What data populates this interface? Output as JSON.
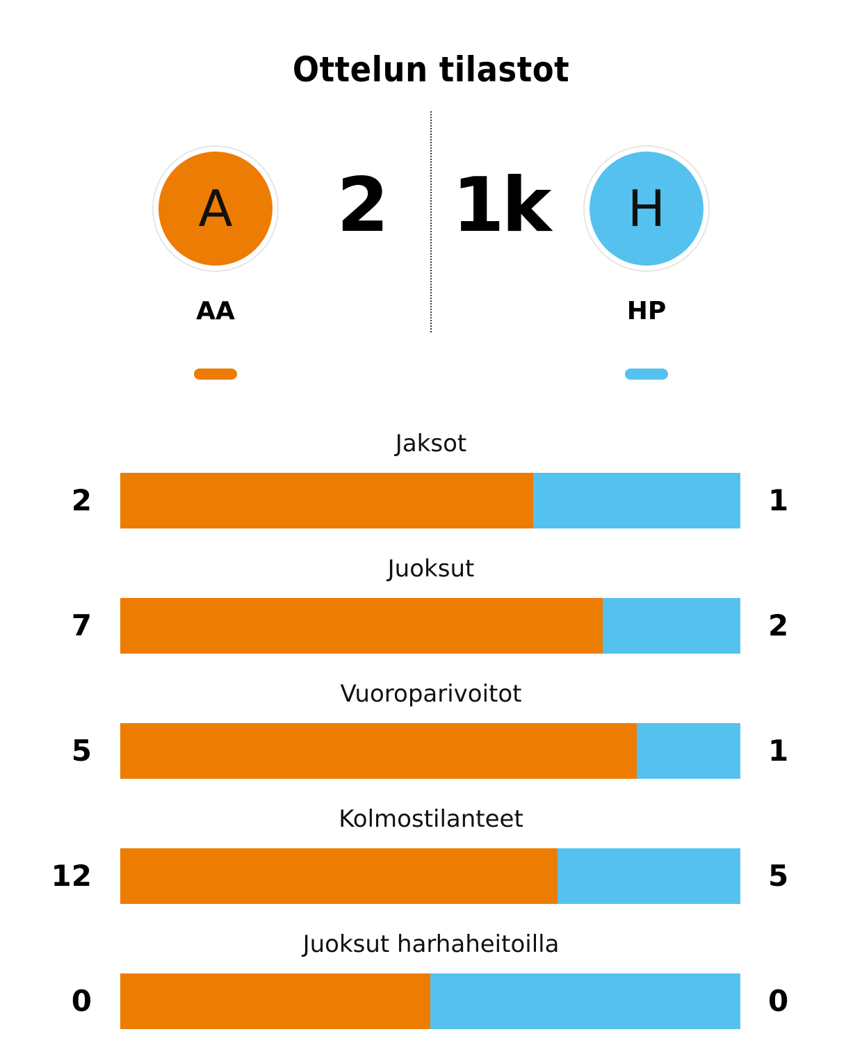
{
  "title": "Ottelun tilastot",
  "colors": {
    "home": "#ED7C02",
    "away": "#55C1EF"
  },
  "home": {
    "initial": "A",
    "name": "AA",
    "score": "2"
  },
  "away": {
    "initial": "H",
    "name": "HP",
    "score": "1k"
  },
  "stats": [
    {
      "label": "Jaksot",
      "home": "2",
      "away": "1",
      "home_share": 0.666
    },
    {
      "label": "Juoksut",
      "home": "7",
      "away": "2",
      "home_share": 0.778
    },
    {
      "label": "Vuoroparivoitot",
      "home": "5",
      "away": "1",
      "home_share": 0.833
    },
    {
      "label": "Kolmostilanteet",
      "home": "12",
      "away": "5",
      "home_share": 0.705
    },
    {
      "label": "Juoksut harhaheitoilla",
      "home": "0",
      "away": "0",
      "home_share": 0.5
    }
  ]
}
